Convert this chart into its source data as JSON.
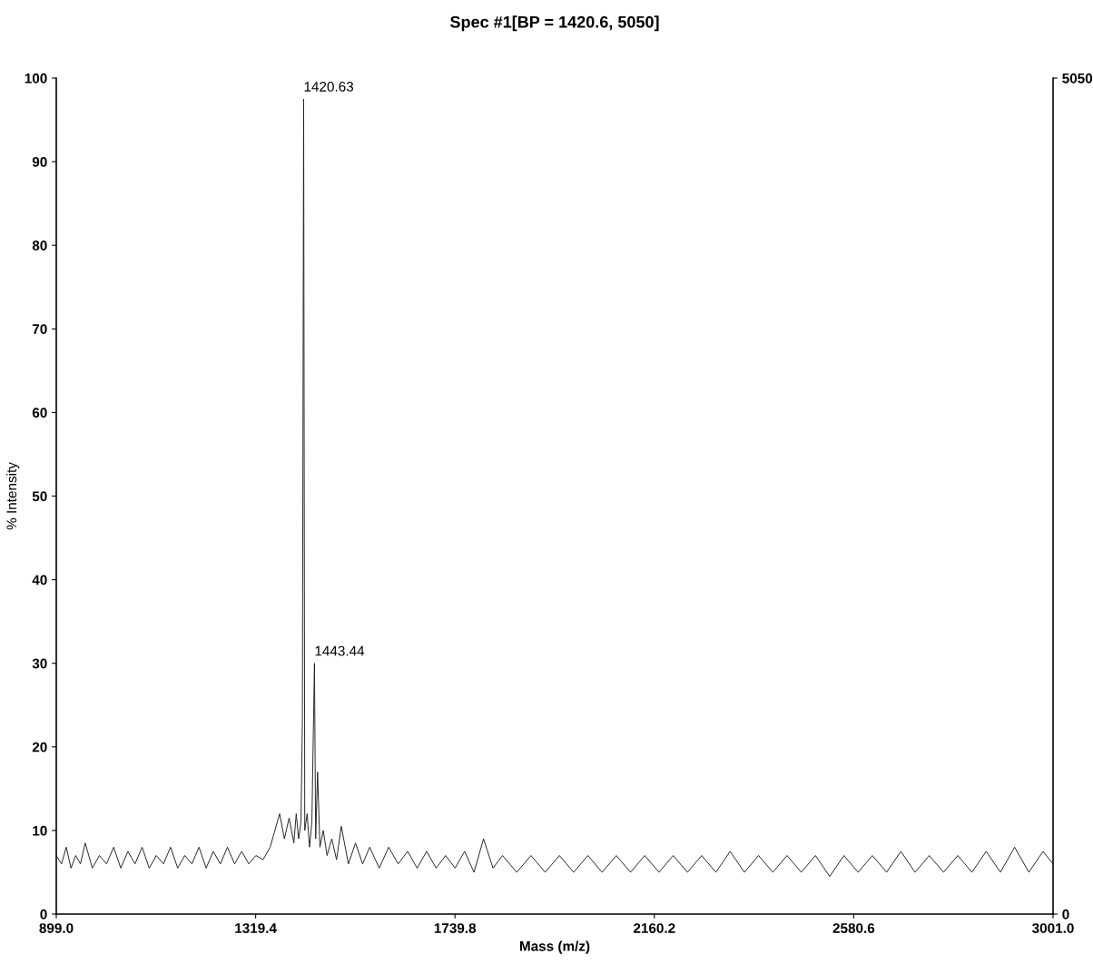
{
  "chart_data": {
    "type": "line",
    "title": "Spec #1[BP = 1420.6, 5050]",
    "xlabel": "Mass (m/z)",
    "ylabel": "% Intensity",
    "x": [
      899,
      910,
      920,
      930,
      940,
      950,
      960,
      975,
      990,
      1005,
      1020,
      1035,
      1050,
      1065,
      1080,
      1095,
      1110,
      1125,
      1140,
      1155,
      1170,
      1185,
      1200,
      1215,
      1230,
      1245,
      1260,
      1275,
      1290,
      1305,
      1320,
      1335,
      1350,
      1360,
      1370,
      1380,
      1390,
      1400,
      1405,
      1410,
      1415,
      1418,
      1420.63,
      1423,
      1428,
      1433,
      1438,
      1443.44,
      1446,
      1450,
      1455,
      1462,
      1470,
      1480,
      1490,
      1500,
      1515,
      1530,
      1545,
      1560,
      1580,
      1600,
      1620,
      1640,
      1660,
      1680,
      1700,
      1720,
      1740,
      1760,
      1780,
      1800,
      1820,
      1840,
      1870,
      1900,
      1930,
      1960,
      1990,
      2020,
      2050,
      2080,
      2110,
      2140,
      2170,
      2200,
      2230,
      2260,
      2290,
      2320,
      2350,
      2380,
      2410,
      2440,
      2470,
      2500,
      2530,
      2560,
      2590,
      2620,
      2650,
      2680,
      2710,
      2740,
      2770,
      2800,
      2830,
      2860,
      2890,
      2920,
      2950,
      2980,
      3001
    ],
    "series": [
      {
        "color": "#222222",
        "values": [
          7,
          6,
          8,
          5.5,
          7,
          6,
          8.5,
          5.5,
          7,
          6,
          8,
          5.5,
          7.5,
          6,
          8,
          5.5,
          7,
          6,
          8,
          5.5,
          7,
          6,
          8,
          5.5,
          7.5,
          6,
          8,
          6,
          7.5,
          6,
          7,
          6.5,
          8,
          10,
          12,
          9,
          11.5,
          8.5,
          12,
          9,
          11,
          23,
          97.5,
          10,
          12,
          8,
          11,
          30,
          9,
          17,
          8,
          10,
          7,
          9,
          6.5,
          10.5,
          6,
          8.5,
          6,
          8,
          5.5,
          8,
          6,
          7.5,
          5.5,
          7.5,
          5.5,
          7,
          5.5,
          7.5,
          5,
          9,
          5.5,
          7,
          5,
          7,
          5,
          7,
          5,
          7,
          5,
          7,
          5,
          7,
          5,
          7,
          5,
          7,
          5,
          7.5,
          5,
          7,
          5,
          7,
          5,
          7,
          4.5,
          7,
          5,
          7,
          5,
          7.5,
          5,
          7,
          5,
          7,
          5,
          7.5,
          5,
          8,
          5,
          7.5,
          6
        ]
      }
    ],
    "xlim": [
      899,
      3001
    ],
    "xticks": [
      {
        "value": 899,
        "label": "899.0"
      },
      {
        "value": 1319.4,
        "label": "1319.4"
      },
      {
        "value": 1739.8,
        "label": "1739.8"
      },
      {
        "value": 2160.2,
        "label": "2160.2"
      },
      {
        "value": 2580.6,
        "label": "2580.6"
      },
      {
        "value": 3001,
        "label": "3001.0"
      }
    ],
    "ylim": [
      0,
      100
    ],
    "yticks": [
      0,
      10,
      20,
      30,
      40,
      50,
      60,
      70,
      80,
      90,
      100
    ],
    "y2lim": [
      0,
      5050
    ],
    "y2ticks": [
      0,
      5050
    ],
    "annotations": [
      {
        "text": "1420.63",
        "x": 1420.63,
        "y": 97.5
      },
      {
        "text": "1443.44",
        "x": 1443.44,
        "y": 30
      }
    ],
    "grid": false,
    "legend": false
  }
}
